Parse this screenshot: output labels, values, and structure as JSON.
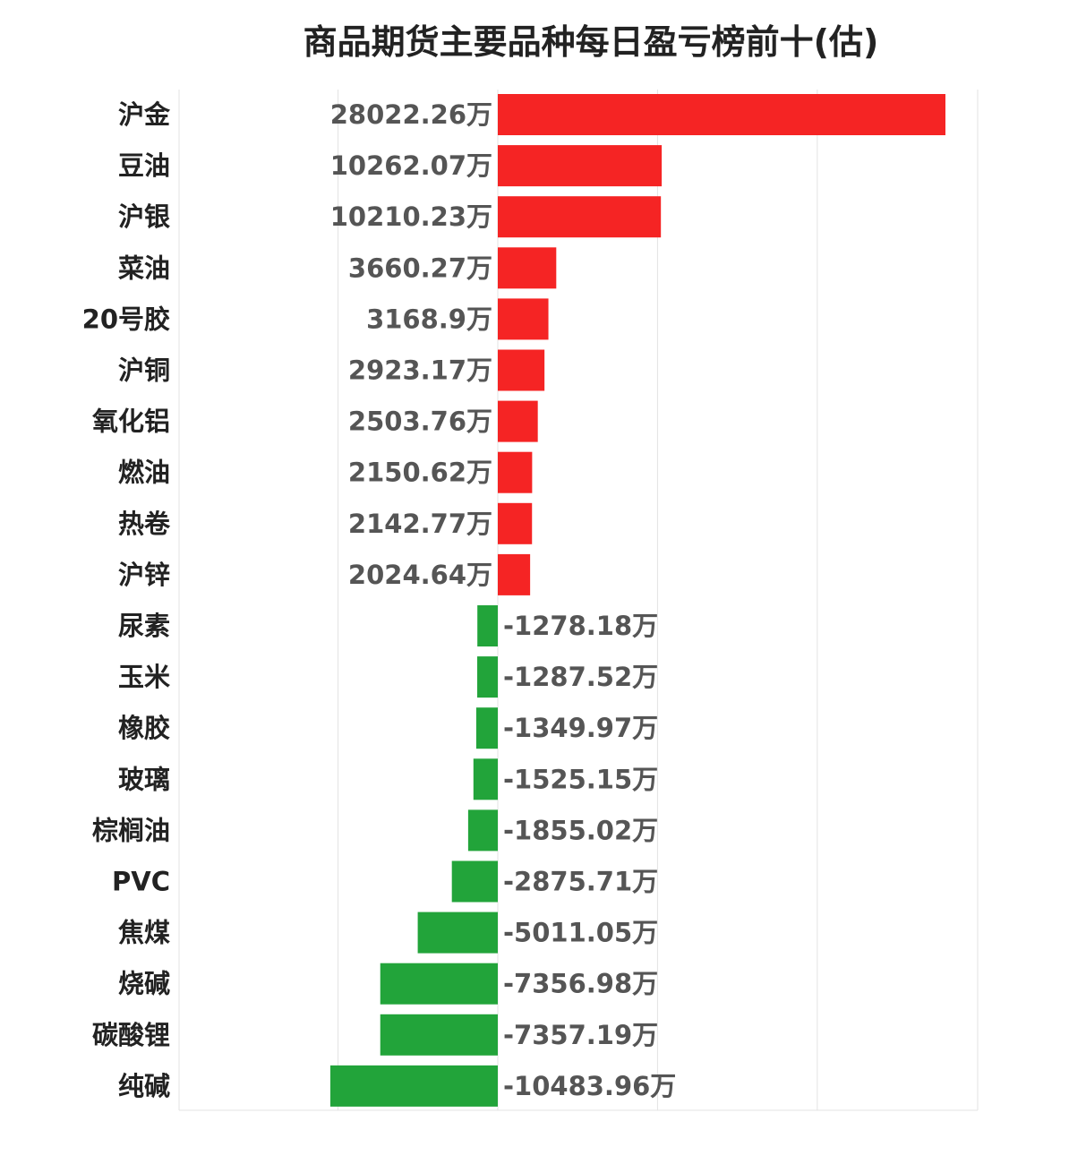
{
  "chart_data": {
    "type": "bar",
    "orientation": "horizontal",
    "title": "商品期货主要品种每日盈亏榜前十(估)",
    "unit_suffix": "万",
    "grid": true,
    "colors": {
      "positive": "#f52424",
      "negative": "#22a43a"
    },
    "categories": [
      "沪金",
      "豆油",
      "沪银",
      "菜油",
      "20号胶",
      "沪铜",
      "氧化铝",
      "燃油",
      "热卷",
      "沪锌",
      "尿素",
      "玉米",
      "橡胶",
      "玻璃",
      "棕榈油",
      "PVC",
      "焦煤",
      "烧碱",
      "碳酸锂",
      "纯碱"
    ],
    "values": [
      28022.26,
      10262.07,
      10210.23,
      3660.27,
      3168.9,
      2923.17,
      2503.76,
      2150.62,
      2142.77,
      2024.64,
      -1278.18,
      -1287.52,
      -1349.97,
      -1525.15,
      -1855.02,
      -2875.71,
      -5011.05,
      -7356.98,
      -7357.19,
      -10483.96
    ],
    "value_labels": [
      "28022.26万",
      "10262.07万",
      "10210.23万",
      "3660.27万",
      "3168.9万",
      "2923.17万",
      "2503.76万",
      "2150.62万",
      "2142.77万",
      "2024.64万",
      "-1278.18万",
      "-1287.52万",
      "-1349.97万",
      "-1525.15万",
      "-1855.02万",
      "-2875.71万",
      "-5011.05万",
      "-7356.98万",
      "-7357.19万",
      "-10483.96万"
    ]
  }
}
